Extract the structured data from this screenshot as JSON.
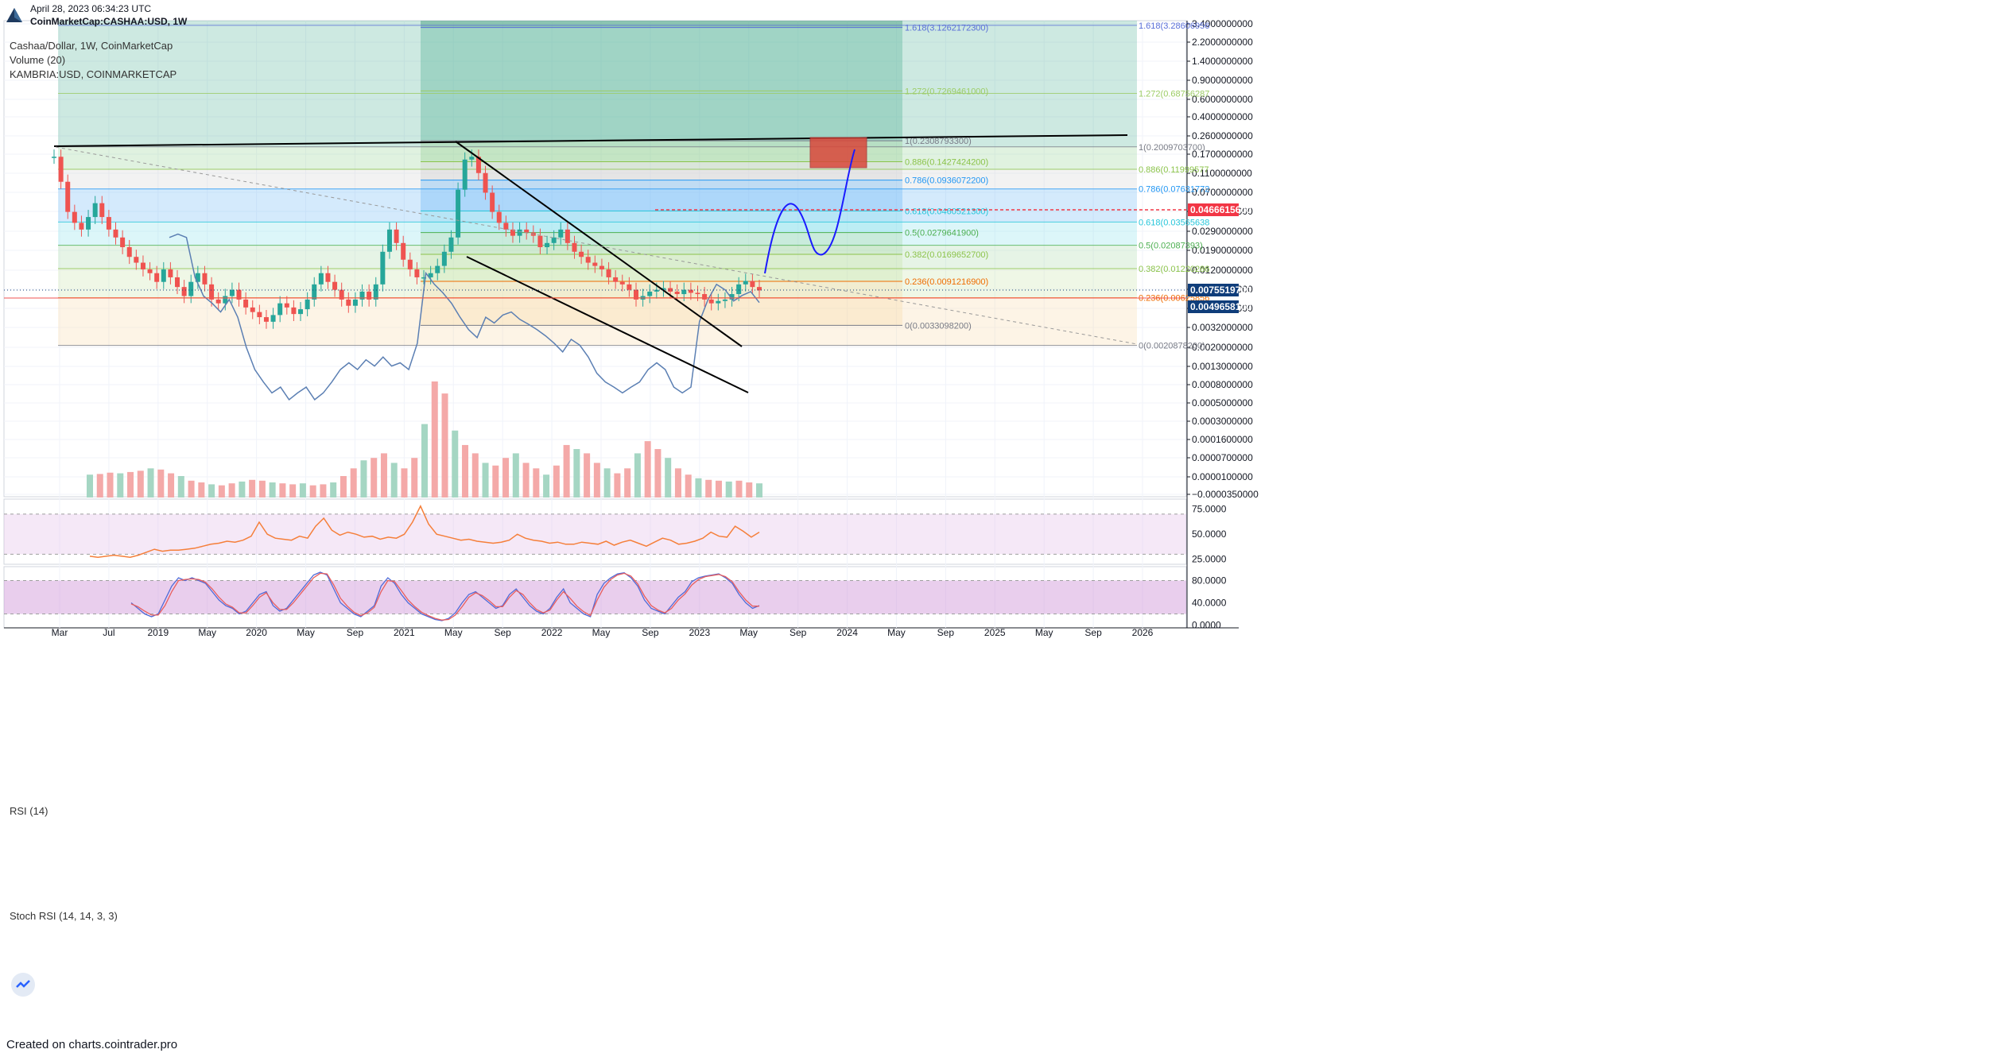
{
  "header": {
    "timestamp": "April 28, 2023 06:34:23 UTC",
    "symbol_line": "CoinMarketCap:CASHAA:USD, 1W"
  },
  "legend": {
    "main": "Cashaa/Dollar, 1W, CoinMarketCap",
    "volume": "Volume (20)",
    "overlay": "KAMBRIA:USD, COINMARKETCAP",
    "rsi": "RSI (14)",
    "stoch": "Stoch RSI (14, 14, 3, 3)"
  },
  "footer": {
    "text": "Created on charts.cointrader.pro"
  },
  "colors": {
    "up": "#26a69a",
    "down": "#ef5350",
    "overlay": "#5b7fb3",
    "rsi": "#f57f3a",
    "stoch_k": "#4f6bd8",
    "stoch_d": "#e85d5d",
    "badge_red": "#f23645",
    "badge_blue": "#0f3d7a"
  },
  "chart_data": [
    {
      "type": "line",
      "scale": "log",
      "x_axis_labels": [
        "Mar",
        "Jul",
        "2019",
        "May",
        "2020",
        "May",
        "Sep",
        "2021",
        "May",
        "Sep",
        "2022",
        "May",
        "Sep",
        "2023",
        "May",
        "Sep",
        "2024",
        "May",
        "Sep",
        "2025",
        "May",
        "Sep",
        "2026"
      ],
      "y_axis_labels": [
        "3.4000000000",
        "2.2000000000",
        "1.4000000000",
        "0.9000000000",
        "0.6000000000",
        "0.4000000000",
        "0.2600000000",
        "0.1700000000",
        "0.1100000000",
        "0.0700000000",
        "0.0450000000",
        "0.0290000000",
        "0.0190000000",
        "0.0120000000",
        "0.0080000000",
        "0.0050000000",
        "0.0032000000",
        "0.0020000000",
        "0.0013000000",
        "0.0008000000",
        "0.0005000000",
        "0.0003000000",
        "0.0001600000",
        "0.0000700000",
        "0.0000100000",
        "−0.0000350000"
      ],
      "price_badges": [
        {
          "label": "0.0466615600",
          "color": "#f23645"
        },
        {
          "label": "0.0075519700",
          "color": "#0f3d7a"
        },
        {
          "label": "0.0049658100",
          "color": "#0f3d7a"
        }
      ],
      "fib_left": {
        "levels": [
          {
            "label": "1.618(3.1262172300)",
            "value": 3.12621723
          },
          {
            "label": "1.272(0.7269461000)",
            "value": 0.7269461
          },
          {
            "label": "1(0.2308793300)",
            "value": 0.23087933
          },
          {
            "label": "0.886(0.1427424200)",
            "value": 0.14274242
          },
          {
            "label": "0.786(0.0936072200)",
            "value": 0.09360722
          },
          {
            "label": "0.618(0.0460521300)",
            "value": 0.04605213
          },
          {
            "label": "0.5(0.0279641900)",
            "value": 0.02796419
          },
          {
            "label": "0.382(0.0169652700)",
            "value": 0.01696527
          },
          {
            "label": "0.236(0.0091216900)",
            "value": 0.00912169
          },
          {
            "label": "0(0.0033098200)",
            "value": 0.00330982
          }
        ]
      },
      "fib_right": {
        "levels": [
          {
            "label": "1.618(3.28606956",
            "value": 3.28606956
          },
          {
            "label": "1.272(0.68756287",
            "value": 0.68756287
          },
          {
            "label": "1(0.2009703700)",
            "value": 0.20097037
          },
          {
            "label": "0.886(0.11999577",
            "value": 0.11999577
          },
          {
            "label": "0.786(0.07631772",
            "value": 0.07631772
          },
          {
            "label": "0.618(0.03565638",
            "value": 0.03565638
          },
          {
            "label": "0.5(0.02087393)",
            "value": 0.02087393
          },
          {
            "label": "0.382(0.01220286",
            "value": 0.01220286
          },
          {
            "label": "0.236(0.00625856",
            "value": 0.00625856
          },
          {
            "label": "0(0.0020878200)",
            "value": 0.00208782
          }
        ]
      },
      "price_series": [
        0.16,
        0.09,
        0.045,
        0.035,
        0.03,
        0.04,
        0.055,
        0.04,
        0.03,
        0.025,
        0.02,
        0.016,
        0.014,
        0.012,
        0.011,
        0.009,
        0.012,
        0.01,
        0.008,
        0.0065,
        0.009,
        0.011,
        0.0085,
        0.006,
        0.0055,
        0.0065,
        0.0075,
        0.006,
        0.005,
        0.0045,
        0.004,
        0.0036,
        0.0042,
        0.0055,
        0.005,
        0.0043,
        0.0048,
        0.006,
        0.0085,
        0.011,
        0.009,
        0.0075,
        0.006,
        0.0052,
        0.006,
        0.0072,
        0.006,
        0.0085,
        0.018,
        0.03,
        0.022,
        0.015,
        0.012,
        0.01,
        0.01,
        0.011,
        0.013,
        0.018,
        0.025,
        0.075,
        0.15,
        0.16,
        0.11,
        0.07,
        0.045,
        0.035,
        0.03,
        0.026,
        0.03,
        0.028,
        0.026,
        0.02,
        0.022,
        0.025,
        0.03,
        0.022,
        0.018,
        0.016,
        0.014,
        0.013,
        0.012,
        0.01,
        0.009,
        0.0085,
        0.0075,
        0.006,
        0.0065,
        0.0072,
        0.0075,
        0.0078,
        0.0072,
        0.0068,
        0.0075,
        0.007,
        0.0068,
        0.006,
        0.0055,
        0.0058,
        0.006,
        0.0068,
        0.0085,
        0.0092,
        0.008,
        0.0074
      ],
      "overlay_series": [
        0.025,
        0.027,
        0.025,
        0.01,
        0.0065,
        0.0055,
        0.0045,
        0.006,
        0.004,
        0.002,
        0.0012,
        0.0009,
        0.0007,
        0.0008,
        0.0006,
        0.0007,
        0.0008,
        0.0006,
        0.0007,
        0.0009,
        0.0012,
        0.0014,
        0.0012,
        0.0015,
        0.0013,
        0.0016,
        0.0013,
        0.0014,
        0.0012,
        0.0022,
        0.011,
        0.0085,
        0.007,
        0.0055,
        0.004,
        0.003,
        0.0025,
        0.004,
        0.0035,
        0.0042,
        0.0045,
        0.0038,
        0.0034,
        0.003,
        0.0026,
        0.0022,
        0.0018,
        0.0024,
        0.0021,
        0.0016,
        0.0011,
        0.0009,
        0.0008,
        0.0007,
        0.0008,
        0.0009,
        0.0012,
        0.0014,
        0.0012,
        0.0008,
        0.0007,
        0.0008,
        0.0036,
        0.006,
        0.0085,
        0.0075,
        0.0058,
        0.0066,
        0.0072,
        0.0056
      ],
      "volume_series": [
        2e-06,
        2.1e-06,
        2.3e-06,
        2.2e-06,
        2.4e-06,
        2.6e-06,
        3e-06,
        2.8e-06,
        2.2e-06,
        1.8e-06,
        1.2e-06,
        1e-06,
        8e-07,
        7e-07,
        9e-07,
        1.1e-06,
        1.3e-06,
        1.2e-06,
        1e-06,
        9e-07,
        8e-07,
        9e-07,
        7e-07,
        8e-07,
        1e-06,
        1.8e-06,
        3e-06,
        4.5e-06,
        5e-06,
        6e-06,
        4e-06,
        3e-06,
        5e-06,
        1.4e-05,
        3e-05,
        2.5e-05,
        1.2e-05,
        8e-06,
        6e-06,
        4e-06,
        3.5e-06,
        5e-06,
        6e-06,
        4e-06,
        3e-06,
        2e-06,
        3.5e-06,
        8e-06,
        7e-06,
        6e-06,
        4e-06,
        3e-06,
        2.2e-06,
        3e-06,
        6e-06,
        9e-06,
        7e-06,
        5e-06,
        3e-06,
        2e-06,
        1.5e-06,
        1.3e-06,
        1.2e-06,
        1.1e-06,
        1.2e-06,
        1e-06,
        9e-07
      ]
    },
    {
      "type": "line",
      "title": "RSI (14)",
      "y_axis_labels": [
        "75.0000",
        "50.0000",
        "25.0000"
      ],
      "ylim": [
        20,
        85
      ],
      "bands": [
        70,
        30
      ],
      "values": [
        28,
        27,
        28,
        29,
        28,
        27,
        29,
        32,
        35,
        33,
        34,
        34,
        35,
        36,
        38,
        40,
        41,
        43,
        42,
        44,
        48,
        62,
        50,
        46,
        45,
        44,
        48,
        46,
        58,
        66,
        54,
        49,
        52,
        50,
        47,
        48,
        45,
        47,
        46,
        50,
        62,
        78,
        60,
        50,
        48,
        46,
        44,
        45,
        43,
        42,
        41,
        42,
        44,
        50,
        46,
        44,
        43,
        41,
        42,
        40,
        40,
        42,
        41,
        40,
        43,
        39,
        42,
        44,
        41,
        38,
        42,
        46,
        44,
        40,
        41,
        43,
        46,
        52,
        48,
        47,
        58,
        53,
        47,
        52
      ]
    },
    {
      "type": "line",
      "title": "Stoch RSI (14, 14, 3, 3)",
      "y_axis_labels": [
        "80.0000",
        "40.0000",
        "0.0000"
      ],
      "ylim": [
        -5,
        105
      ],
      "bands": [
        80,
        20
      ],
      "k_values": [
        40,
        30,
        20,
        15,
        20,
        45,
        70,
        85,
        80,
        85,
        80,
        75,
        60,
        45,
        35,
        30,
        20,
        25,
        40,
        55,
        60,
        35,
        25,
        30,
        45,
        60,
        75,
        90,
        95,
        90,
        65,
        40,
        30,
        20,
        15,
        25,
        35,
        70,
        85,
        75,
        55,
        40,
        30,
        20,
        15,
        10,
        8,
        12,
        22,
        40,
        55,
        60,
        50,
        40,
        30,
        35,
        55,
        65,
        50,
        35,
        25,
        20,
        30,
        50,
        65,
        40,
        30,
        20,
        15,
        55,
        75,
        85,
        92,
        94,
        85,
        70,
        45,
        30,
        25,
        20,
        35,
        50,
        60,
        78,
        85,
        88,
        90,
        92,
        85,
        75,
        55,
        40,
        30,
        35
      ],
      "d_values": [
        38,
        33,
        25,
        18,
        18,
        35,
        60,
        80,
        82,
        83,
        82,
        77,
        65,
        50,
        38,
        32,
        22,
        22,
        35,
        50,
        58,
        40,
        28,
        28,
        40,
        55,
        70,
        85,
        93,
        92,
        72,
        48,
        34,
        23,
        17,
        22,
        32,
        60,
        80,
        78,
        62,
        45,
        33,
        23,
        17,
        12,
        9,
        10,
        18,
        33,
        50,
        58,
        53,
        44,
        33,
        33,
        50,
        62,
        55,
        40,
        28,
        22,
        27,
        45,
        60,
        48,
        34,
        24,
        17,
        45,
        68,
        82,
        90,
        93,
        88,
        74,
        52,
        35,
        27,
        22,
        30,
        45,
        56,
        72,
        82,
        87,
        89,
        91,
        87,
        78,
        60,
        45,
        34,
        34
      ]
    }
  ]
}
